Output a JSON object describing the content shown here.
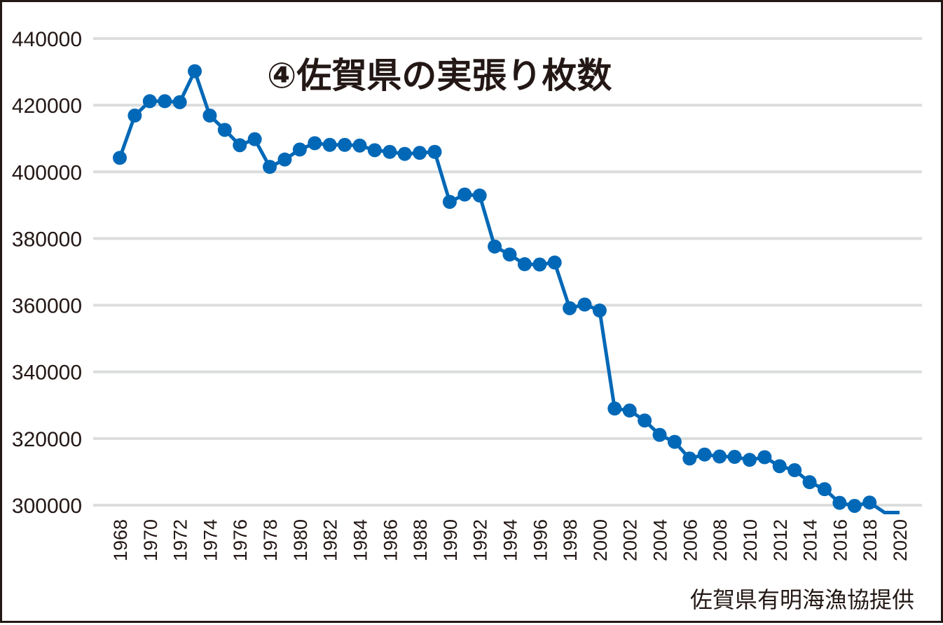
{
  "chart_data": {
    "type": "line",
    "title": "④佐賀県の実張り枚数",
    "source": "佐賀県有明海漁協提供",
    "xlabel": "",
    "ylabel": "",
    "ylim": [
      300000,
      440000
    ],
    "yticks": [
      "300000",
      "320000",
      "340000",
      "360000",
      "380000",
      "400000",
      "420000",
      "440000"
    ],
    "xticks": [
      "1968",
      "1970",
      "1972",
      "1974",
      "1976",
      "1978",
      "1980",
      "1982",
      "1984",
      "1986",
      "1988",
      "1990",
      "1992",
      "1994",
      "1996",
      "1998",
      "2000",
      "2002",
      "2004",
      "2006",
      "2008",
      "2010",
      "2012",
      "2014",
      "2016",
      "2018",
      "2020"
    ],
    "grid": true,
    "line_color": "#0068b7",
    "grid_color": "#dcdddd",
    "x": [
      1968,
      1969,
      1970,
      1971,
      1972,
      1973,
      1974,
      1975,
      1976,
      1977,
      1978,
      1979,
      1980,
      1981,
      1982,
      1983,
      1984,
      1985,
      1986,
      1987,
      1988,
      1989,
      1990,
      1991,
      1992,
      1993,
      1994,
      1995,
      1996,
      1997,
      1998,
      1999,
      2000,
      2001,
      2002,
      2003,
      2004,
      2005,
      2006,
      2007,
      2008,
      2009,
      2010,
      2011,
      2012,
      2013,
      2014,
      2015,
      2016,
      2017,
      2018,
      2019,
      2020
    ],
    "y": [
      404200,
      416900,
      421200,
      421200,
      420900,
      430200,
      416900,
      412600,
      408000,
      409800,
      401500,
      403700,
      406700,
      408600,
      408100,
      408100,
      407900,
      406500,
      406000,
      405400,
      405700,
      406000,
      391000,
      393200,
      392900,
      377600,
      375200,
      372300,
      372200,
      372800,
      359100,
      360200,
      358400,
      329000,
      328400,
      325400,
      321100,
      319000,
      314000,
      315200,
      314600,
      314500,
      313600,
      314400,
      311700,
      310500,
      306900,
      304800,
      300700,
      299800,
      300800,
      297800,
      297800
    ],
    "markers_end_year": 2018
  }
}
